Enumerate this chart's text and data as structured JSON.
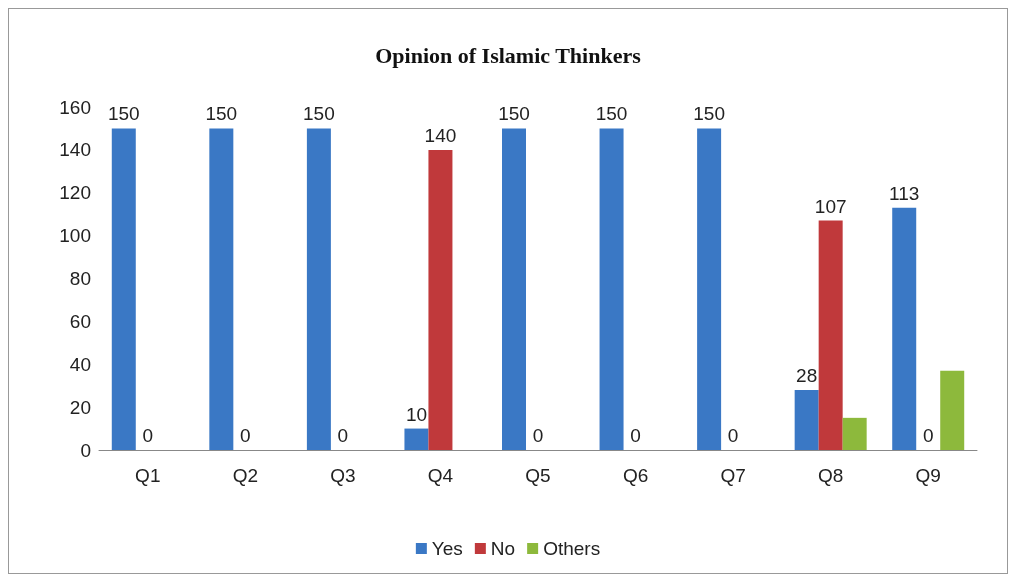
{
  "chart_data": {
    "type": "bar",
    "title": "Opinion of Islamic Thinkers",
    "categories": [
      "Q1",
      "Q2",
      "Q3",
      "Q4",
      "Q5",
      "Q6",
      "Q7",
      "Q8",
      "Q9"
    ],
    "series": [
      {
        "name": "Yes",
        "color": "#3a78c5",
        "values": [
          150,
          150,
          150,
          10,
          150,
          150,
          150,
          28,
          113
        ],
        "value_labels": [
          "150",
          "150",
          "150",
          "10",
          "150",
          "150",
          "150",
          "28",
          "113"
        ]
      },
      {
        "name": "No",
        "color": "#c0393b",
        "values": [
          0,
          0,
          0,
          140,
          0,
          0,
          0,
          107,
          0
        ],
        "value_labels": [
          "0",
          "0",
          "0",
          "140",
          "0",
          "0",
          "0",
          "107",
          "0"
        ]
      },
      {
        "name": "Others",
        "color": "#8db93c",
        "values": [
          0,
          0,
          0,
          0,
          0,
          0,
          0,
          15,
          37
        ],
        "value_labels": [
          null,
          null,
          null,
          null,
          null,
          null,
          null,
          null,
          null
        ]
      }
    ],
    "ylim": [
      0,
      160
    ],
    "yticks": [
      0,
      20,
      40,
      60,
      80,
      100,
      120,
      140,
      160
    ],
    "grid": false,
    "legend": "bottom"
  }
}
